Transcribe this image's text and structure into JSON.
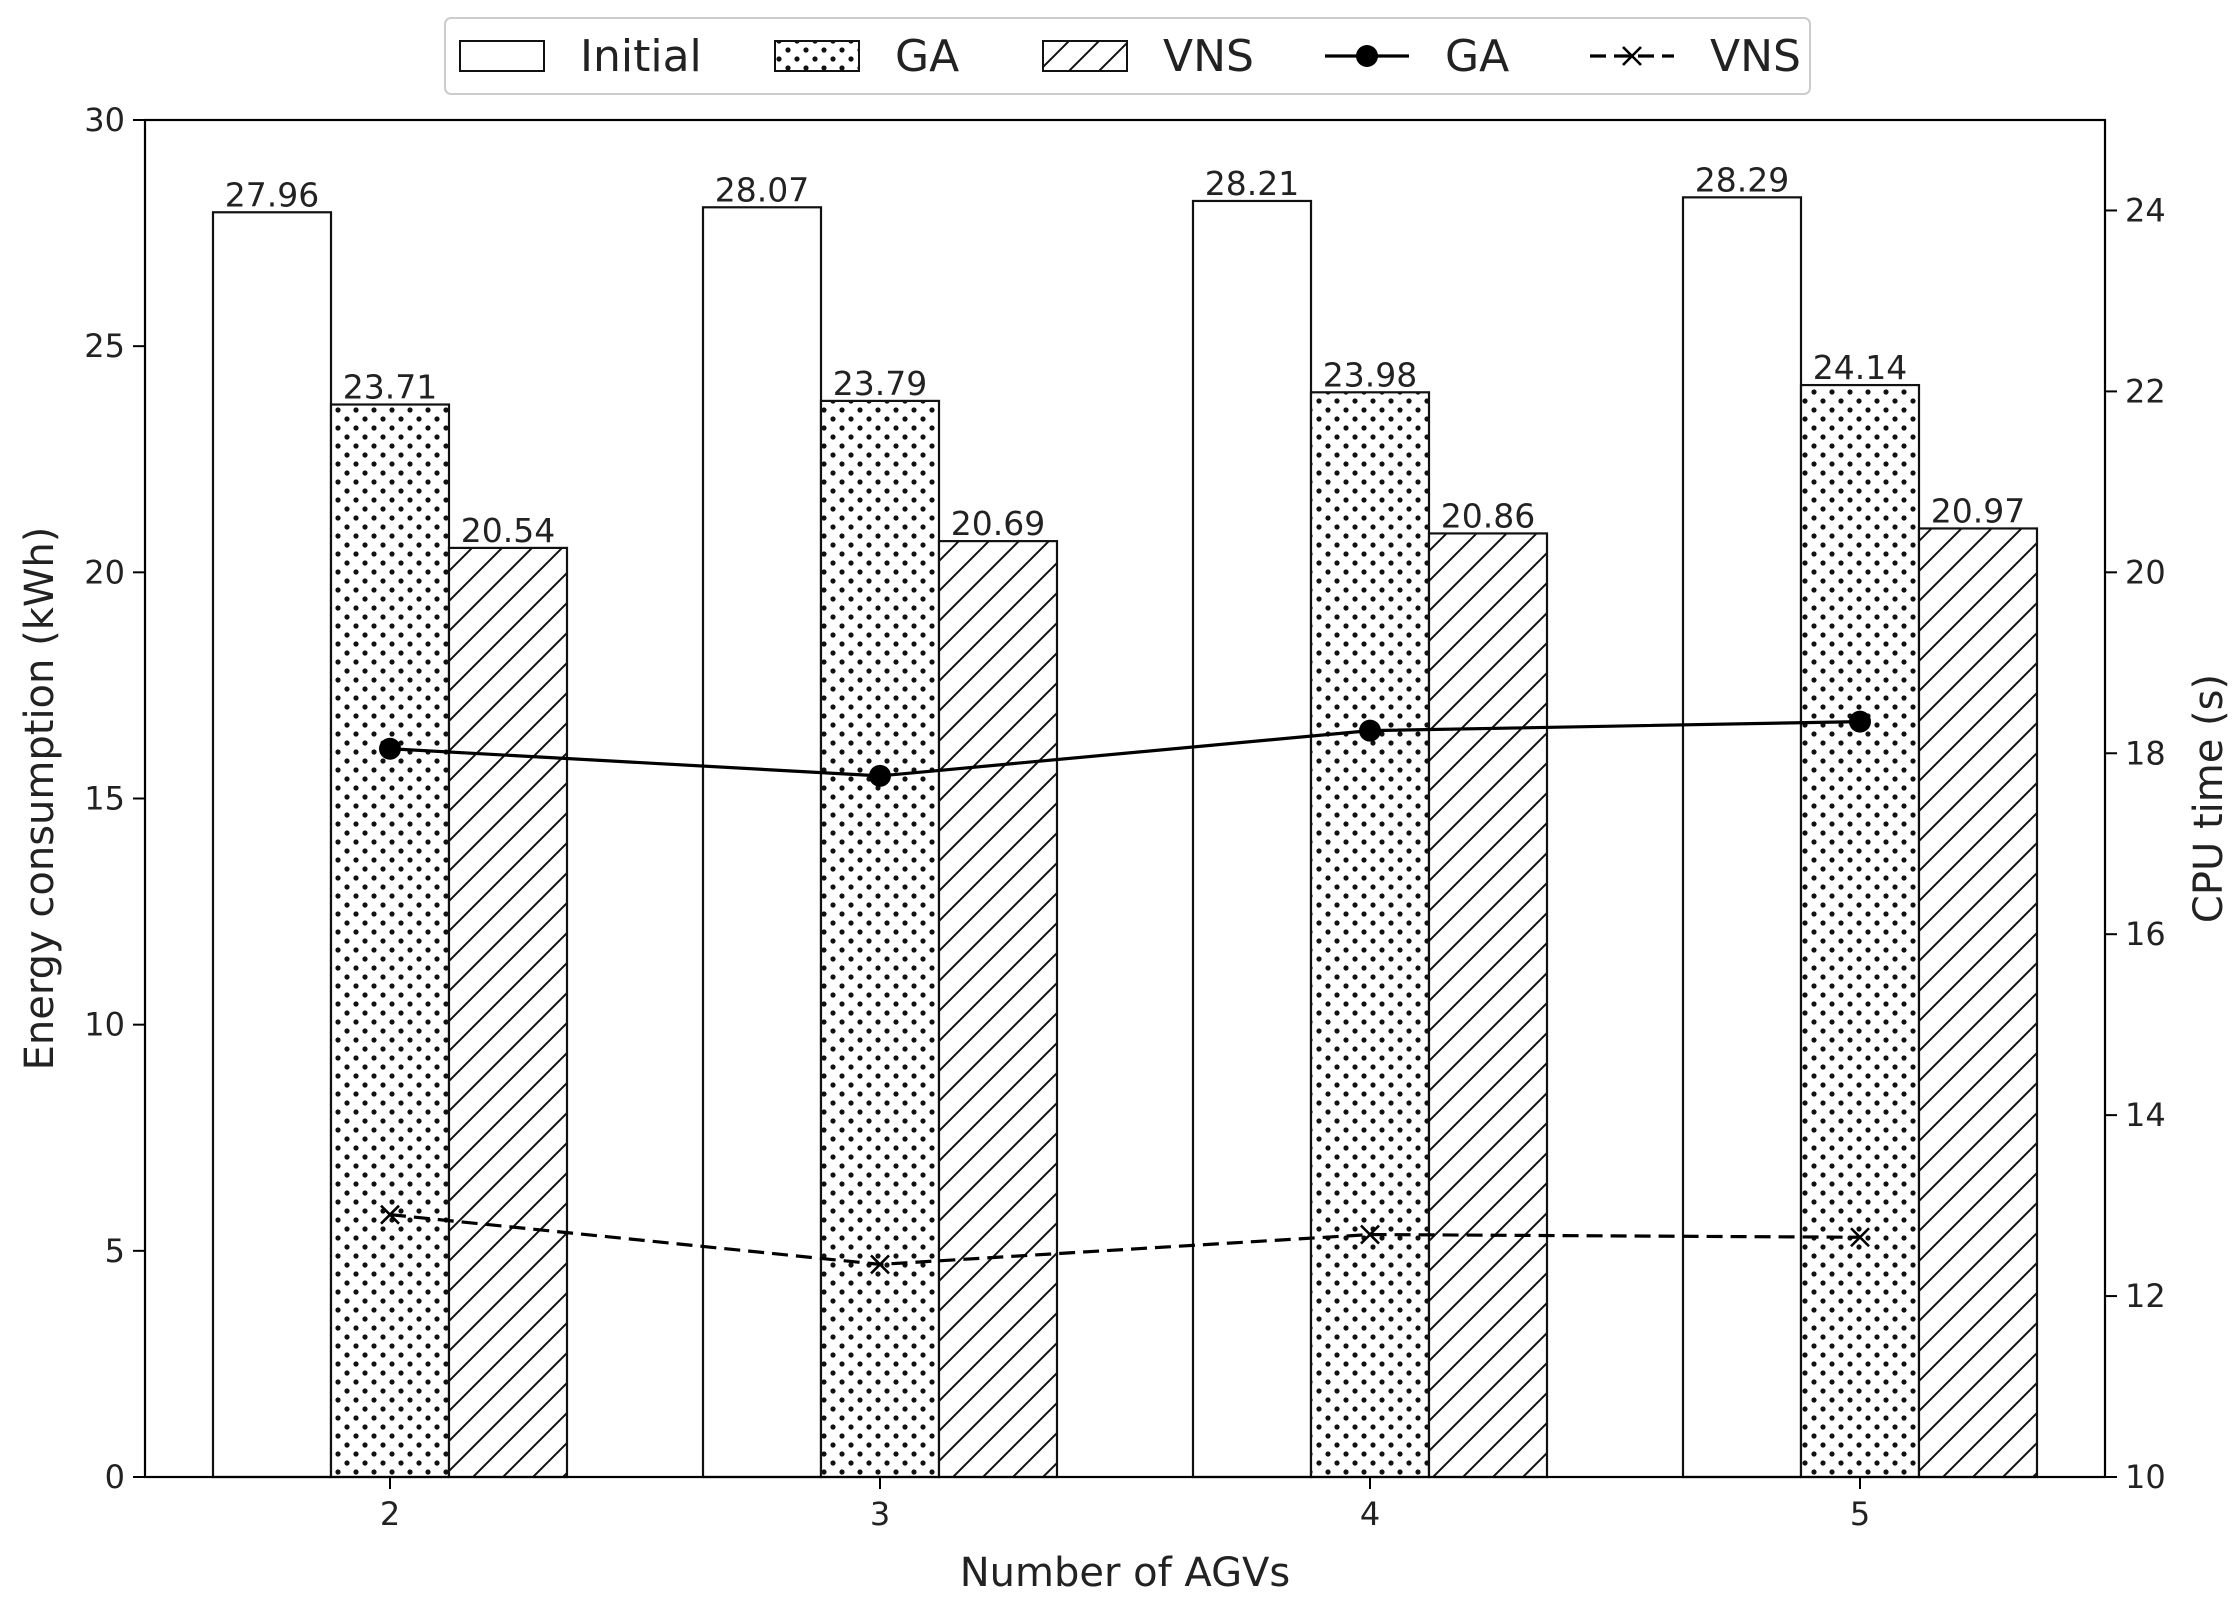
{
  "chart_data": {
    "type": "bar",
    "categories": [
      "2",
      "3",
      "4",
      "5"
    ],
    "xlabel": "Number of AGVs",
    "ylabel": "Energy consumption (kWh)",
    "y2label": "CPU time (s)",
    "ylim": [
      0,
      30
    ],
    "y2lim": [
      10,
      25
    ],
    "yticks": [
      0,
      5,
      10,
      15,
      20,
      25,
      30
    ],
    "y2ticks": [
      10,
      12,
      14,
      16,
      18,
      20,
      22,
      24
    ],
    "grid": false,
    "legend": "top-center",
    "bar_series": [
      {
        "name": "Initial",
        "pattern": "plain",
        "values": [
          27.96,
          28.07,
          28.21,
          28.29
        ],
        "labels": [
          "27.96",
          "28.07",
          "28.21",
          "28.29"
        ]
      },
      {
        "name": "GA",
        "pattern": "dots",
        "values": [
          23.71,
          23.79,
          23.98,
          24.14
        ],
        "labels": [
          "23.71",
          "23.79",
          "23.98",
          "24.14"
        ]
      },
      {
        "name": "VNS",
        "pattern": "hatch",
        "values": [
          20.54,
          20.69,
          20.86,
          20.97
        ],
        "labels": [
          "20.54",
          "20.69",
          "20.86",
          "20.97"
        ]
      }
    ],
    "line_series": [
      {
        "name": "GA",
        "axis": "right",
        "style": "solid",
        "marker": "circle",
        "values": [
          18.05,
          17.75,
          18.25,
          18.35
        ]
      },
      {
        "name": "VNS",
        "axis": "right",
        "style": "dashed",
        "marker": "x",
        "values": [
          12.9,
          12.35,
          12.68,
          12.65
        ]
      }
    ]
  }
}
